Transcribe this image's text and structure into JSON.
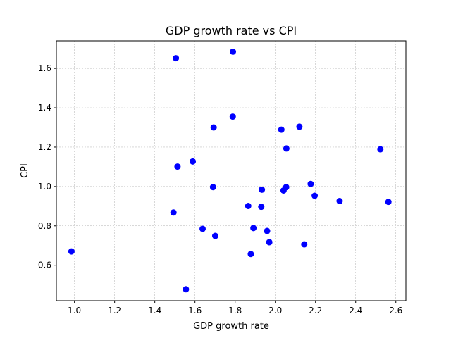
{
  "chart_data": {
    "type": "scatter",
    "title": "GDP growth rate vs CPI",
    "xlabel": "GDP growth rate",
    "ylabel": "CPI",
    "xlim": [
      0.91,
      2.65
    ],
    "ylim": [
      0.42,
      1.74
    ],
    "grid": true,
    "marker_color": "#0000ff",
    "x_ticks": [
      1.0,
      1.2,
      1.4,
      1.6,
      1.8,
      2.0,
      2.2,
      2.4,
      2.6
    ],
    "x_tick_labels": [
      "1.0",
      "1.2",
      "1.4",
      "1.6",
      "1.8",
      "2.0",
      "2.2",
      "2.4",
      "2.6"
    ],
    "y_ticks": [
      0.6,
      0.8,
      1.0,
      1.2,
      1.4,
      1.6
    ],
    "y_tick_labels": [
      "0.6",
      "0.8",
      "1.0",
      "1.2",
      "1.4",
      "1.6"
    ],
    "points": [
      {
        "x": 0.985,
        "y": 0.67
      },
      {
        "x": 1.493,
        "y": 0.868
      },
      {
        "x": 1.505,
        "y": 1.652
      },
      {
        "x": 1.513,
        "y": 1.101
      },
      {
        "x": 1.555,
        "y": 0.478
      },
      {
        "x": 1.589,
        "y": 1.127
      },
      {
        "x": 1.638,
        "y": 0.785
      },
      {
        "x": 1.69,
        "y": 0.997
      },
      {
        "x": 1.693,
        "y": 1.3
      },
      {
        "x": 1.701,
        "y": 0.749
      },
      {
        "x": 1.788,
        "y": 1.355
      },
      {
        "x": 1.789,
        "y": 1.685
      },
      {
        "x": 1.865,
        "y": 0.901
      },
      {
        "x": 1.878,
        "y": 0.657
      },
      {
        "x": 1.891,
        "y": 0.789
      },
      {
        "x": 1.93,
        "y": 0.897
      },
      {
        "x": 1.933,
        "y": 0.984
      },
      {
        "x": 1.959,
        "y": 0.774
      },
      {
        "x": 1.97,
        "y": 0.717
      },
      {
        "x": 2.03,
        "y": 1.289
      },
      {
        "x": 2.041,
        "y": 0.98
      },
      {
        "x": 2.054,
        "y": 0.997
      },
      {
        "x": 2.055,
        "y": 1.193
      },
      {
        "x": 2.12,
        "y": 1.304
      },
      {
        "x": 2.144,
        "y": 0.706
      },
      {
        "x": 2.176,
        "y": 1.013
      },
      {
        "x": 2.196,
        "y": 0.953
      },
      {
        "x": 2.32,
        "y": 0.926
      },
      {
        "x": 2.523,
        "y": 1.189
      },
      {
        "x": 2.563,
        "y": 0.922
      }
    ]
  }
}
